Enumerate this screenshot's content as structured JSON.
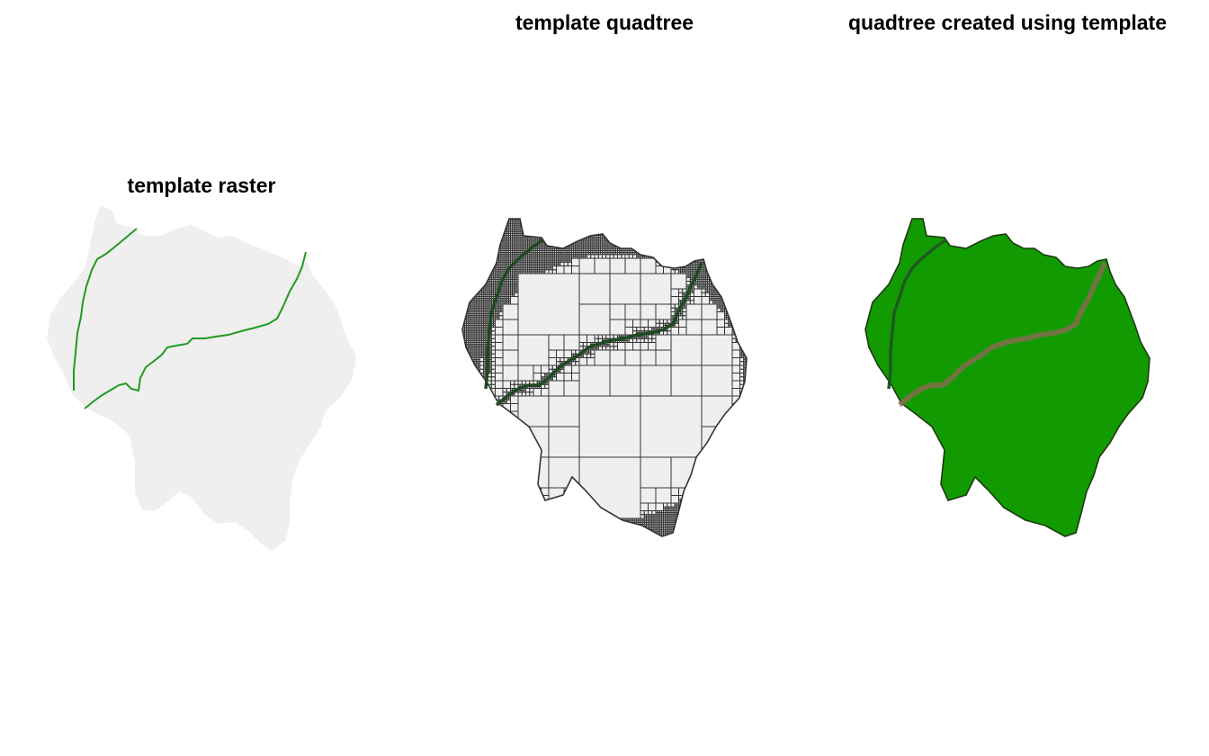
{
  "panels": [
    {
      "id": "raster",
      "title": "template raster"
    },
    {
      "id": "quadtree",
      "title": "template quadtree"
    },
    {
      "id": "result",
      "title": "quadtree created using template"
    }
  ],
  "colors": {
    "background": "#ffffff",
    "raster_fill": "#efefef",
    "river": "#229a22",
    "grid_line": "#333333",
    "quadtree_river": "#1e4a22",
    "terrain_palette": [
      "#119b00",
      "#1fa500",
      "#2fad00",
      "#5cbd00",
      "#8ac800",
      "#b2d600",
      "#d6dd16",
      "#e0c030",
      "#e6ac3a",
      "#e8b79e",
      "#f0cec8",
      "#f2e0dc"
    ]
  }
}
